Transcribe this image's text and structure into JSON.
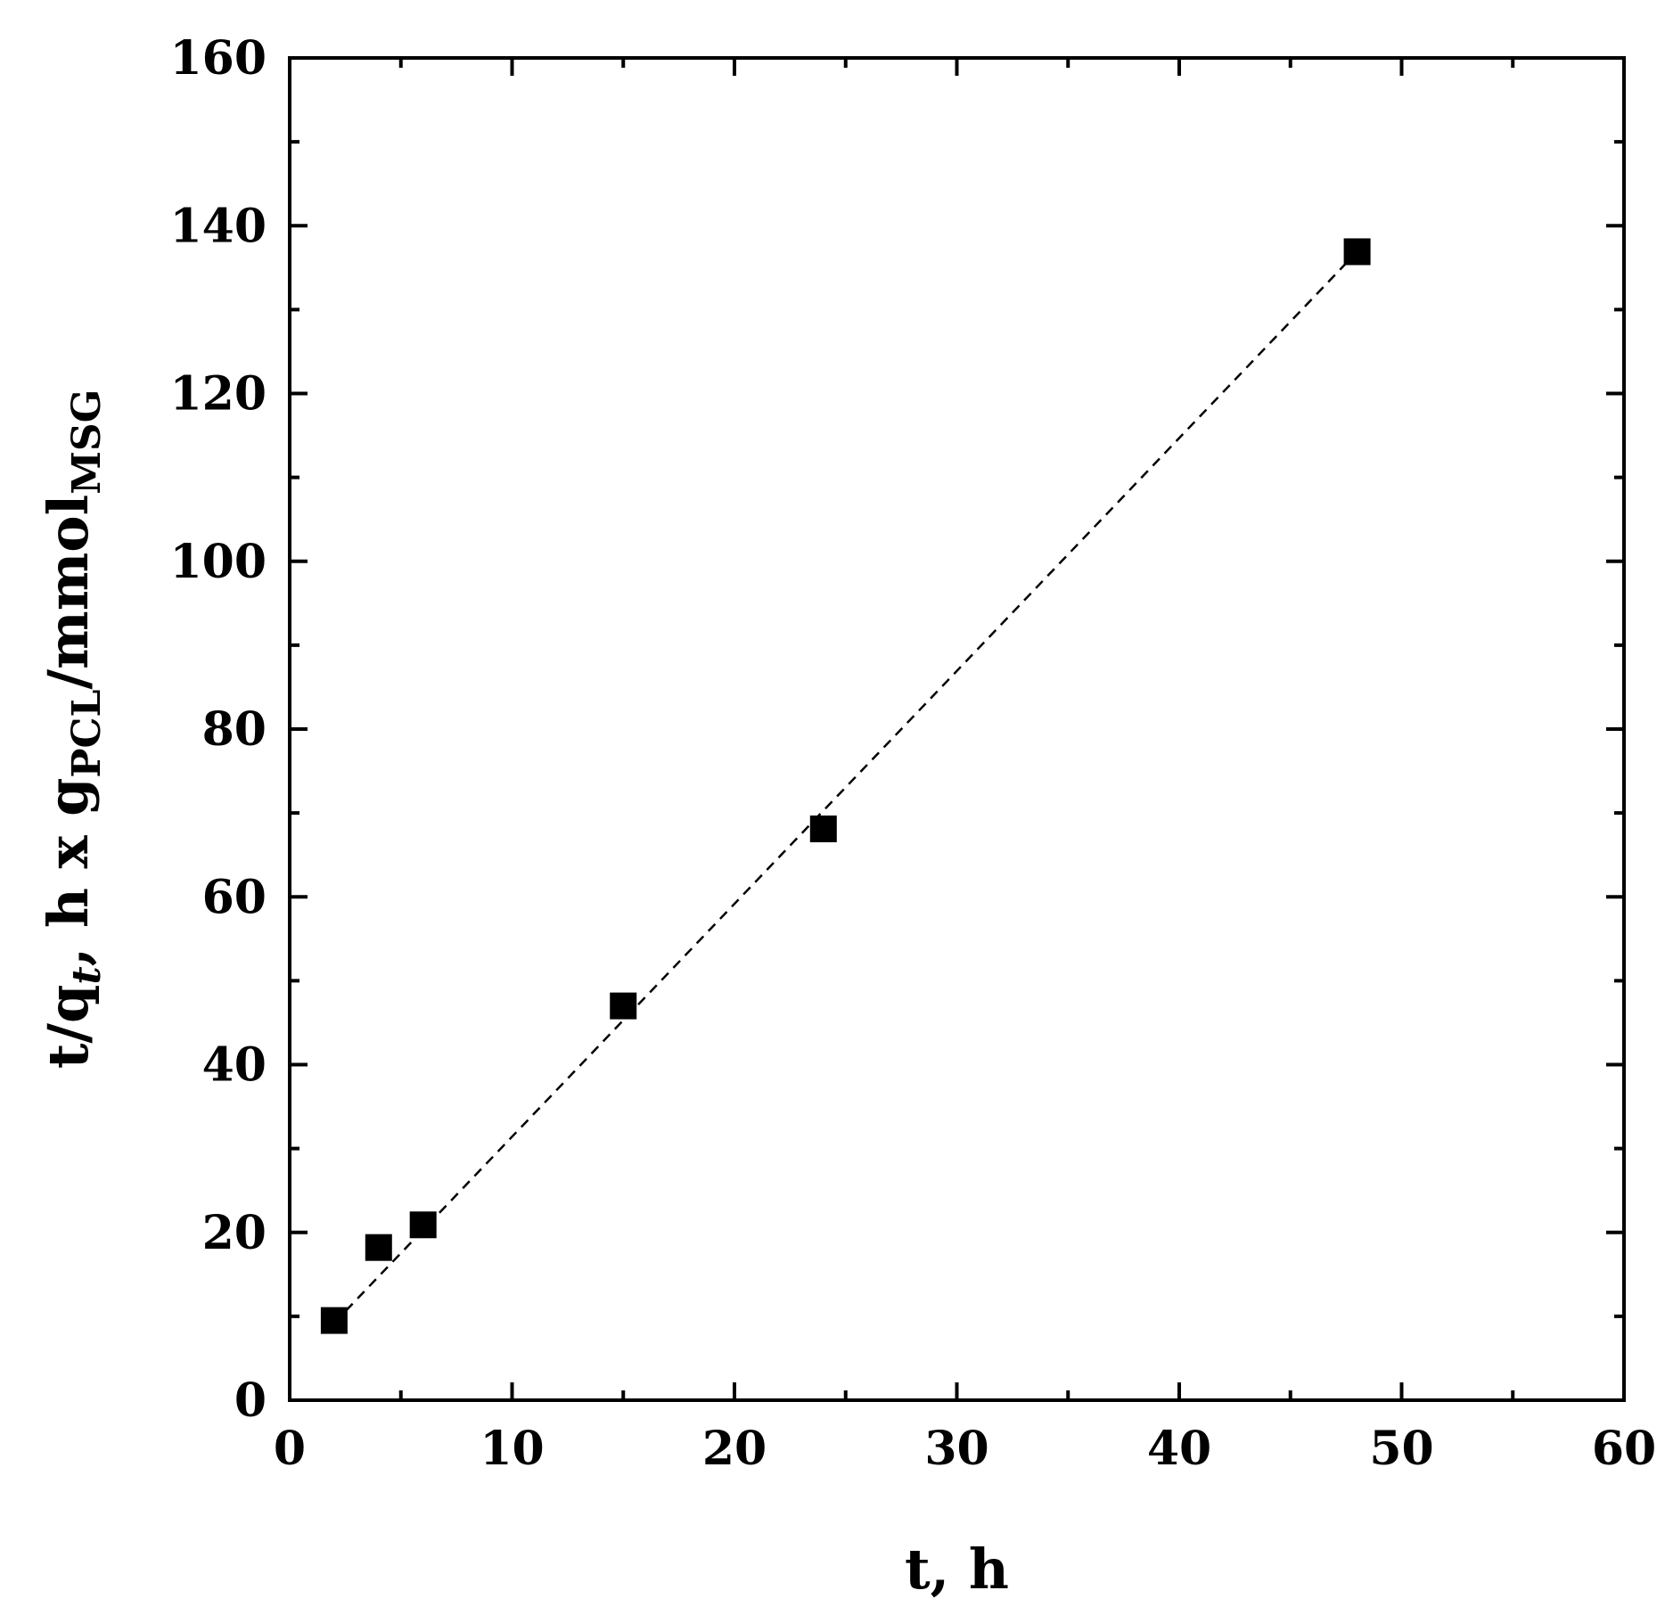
{
  "chart_data": {
    "type": "scatter",
    "title": "",
    "xlabel": "t, h",
    "ylabel": {
      "parts": [
        {
          "text": "t/q",
          "style": "normal"
        },
        {
          "text": "t",
          "style": "sub-italic"
        },
        {
          "text": ", h x g",
          "style": "normal"
        },
        {
          "text": "PCL",
          "style": "sub"
        },
        {
          "text": "/mmol",
          "style": "normal"
        },
        {
          "text": "MSG",
          "style": "sub"
        }
      ]
    },
    "xlim": [
      0,
      60
    ],
    "ylim": [
      0,
      160
    ],
    "x_ticks": [
      0,
      10,
      20,
      30,
      40,
      50,
      60
    ],
    "y_ticks": [
      0,
      20,
      40,
      60,
      80,
      100,
      120,
      140,
      160
    ],
    "x_tick_labels": [
      "0",
      "10",
      "20",
      "30",
      "40",
      "50",
      "60"
    ],
    "y_tick_labels": [
      "0",
      "20",
      "40",
      "60",
      "80",
      "100",
      "120",
      "140",
      "160"
    ],
    "grid": false,
    "series": [
      {
        "x": [
          2,
          4,
          6,
          15,
          24,
          48
        ],
        "y": [
          9.5,
          18.2,
          20.9,
          47.0,
          68.1,
          136.9
        ],
        "marker": "square",
        "color": "#000000"
      }
    ],
    "fit_line": {
      "x": [
        2,
        48
      ],
      "y": [
        9.2,
        136.9
      ],
      "style": "dashed",
      "color": "#000000"
    }
  }
}
